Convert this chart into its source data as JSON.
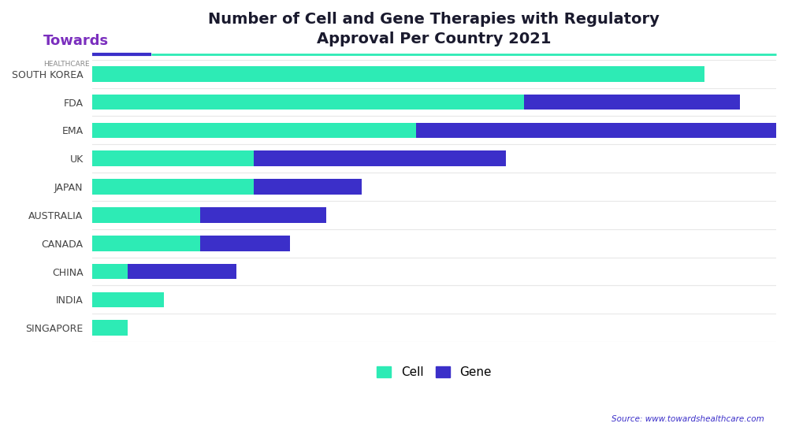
{
  "title": "Number of Cell and Gene Therapies with Regulatory\nApproval Per Country 2021",
  "countries": [
    "SINGAPORE",
    "INDIA",
    "CHINA",
    "CANADA",
    "AUSTRALIA",
    "JAPAN",
    "UK",
    "EMA",
    "FDA",
    "SOUTH KOREA"
  ],
  "cell_values": [
    2,
    4,
    2,
    6,
    6,
    9,
    9,
    18,
    24,
    34
  ],
  "gene_values": [
    0,
    0,
    6,
    5,
    7,
    6,
    14,
    22,
    12,
    0
  ],
  "cell_color": "#2DEBB5",
  "gene_color": "#3B2FC9",
  "background_color": "#FFFFFF",
  "grid_color": "#E8E8E8",
  "title_color": "#1a1a2e",
  "label_color": "#444444",
  "source_text": "Source: www.towardshealthcare.com",
  "source_color": "#3B2FC9",
  "legend_labels": [
    "Cell",
    "Gene"
  ],
  "bar_height": 0.55,
  "xlim": 38
}
